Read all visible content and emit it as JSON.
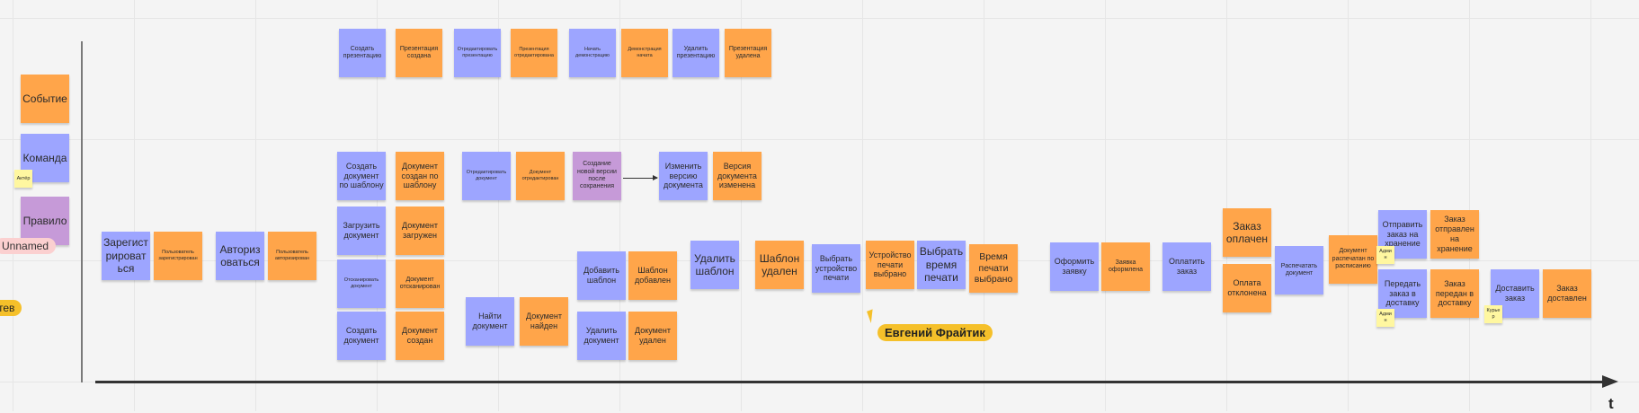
{
  "legend": {
    "event": "Событие",
    "command": "Команда",
    "actor": "Актёр",
    "rule": "Правило",
    "unnamed": "Unnamed",
    "partial": "тев"
  },
  "notes": {
    "n1": "Создать презентацию",
    "n2": "Презентация создана",
    "n3": "Отредактировать презентацию",
    "n4": "Презентация отредактирована",
    "n5": "Начать демонстрацию",
    "n6": "Демонстрация начата",
    "n7": "Удалить презентацию",
    "n8": "Презентация удалена",
    "n9": "Создать документ по шаблону",
    "n10": "Документ создан по шаблону",
    "n11": "Отредактировать документ",
    "n12": "Документ отредактирован",
    "n13": "Создание новой версии после сохранения",
    "n14": "Изменить версию документа",
    "n15": "Версия документа изменена",
    "n16": "Загрузить документ",
    "n17": "Документ загружен",
    "n18": "Отсканировать документ",
    "n19": "Документ отсканирован",
    "n20": "Создать документ",
    "n21": "Документ создан",
    "n22": "Найти документ",
    "n23": "Документ найден",
    "n24": "Добавить шаблон",
    "n25": "Шаблон добавлен",
    "n26": "Удалить шаблон",
    "n27": "Шаблон удален",
    "n28": "Удалить документ",
    "n29": "Документ удален",
    "n30": "Зарегистрироваться",
    "n31": "Пользователь зарегистрирован",
    "n32": "Авторизоваться",
    "n33": "Пользователь авторизирован",
    "n34": "Выбрать устройство печати",
    "n35": "Устройство печати выбрано",
    "n36": "Выбрать время печати",
    "n37": "Время печати выбрано",
    "n38": "Оформить заявку",
    "n39": "Заявка оформлена",
    "n40": "Оплатить заказ",
    "n41": "Заказ оплачен",
    "n42": "Оплата отклонена",
    "n43": "Распечатать документ",
    "n44": "Документ распечатан по расписанию",
    "n45": "Отправить заказ на хранение",
    "n46": "Заказ отправлен на хранение",
    "n47": "Передать заказ в доставку",
    "n48": "Заказ передан в доставку",
    "n49": "Доставить заказ",
    "n50": "Заказ доставлен",
    "a1": "Админ",
    "a2": "Админ",
    "a3": "Курьер"
  },
  "user_label": "Евгений Фрайтик",
  "axis_label": "t",
  "colors": {
    "command": "#9da5ff",
    "event": "#ffa54a",
    "rule": "#c69ad8",
    "actor": "#fff7a0",
    "user": "#f5c02a"
  }
}
